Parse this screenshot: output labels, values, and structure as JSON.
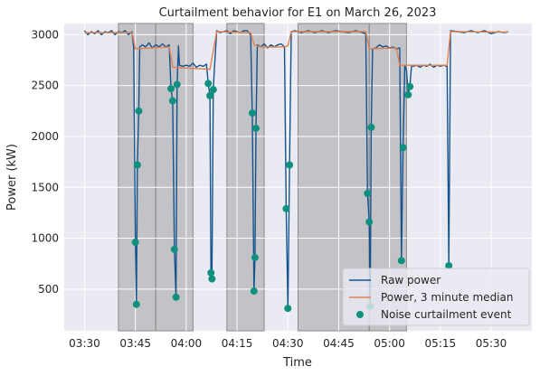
{
  "chart_data": {
    "type": "line",
    "title": "Curtailment behavior for E1 on March 26, 2023",
    "xlabel": "Time",
    "ylabel": "Power (kW)",
    "x_ticks": [
      "03:30",
      "03:45",
      "04:00",
      "04:15",
      "04:30",
      "04:45",
      "05:00",
      "05:15",
      "05:30"
    ],
    "y_ticks": [
      500,
      1000,
      1500,
      2000,
      2500,
      3000
    ],
    "xlim": [
      "03:24",
      "05:42"
    ],
    "ylim": [
      90,
      3110
    ],
    "grid": true,
    "legend_position": "lower-right",
    "shaded_periods": [
      [
        "03:40",
        "03:51"
      ],
      [
        "03:51",
        "04:02"
      ],
      [
        "04:12",
        "04:23"
      ],
      [
        "04:33",
        "04:54"
      ],
      [
        "04:54",
        "05:05"
      ]
    ],
    "series": [
      {
        "name": "Raw power",
        "color": "#16538c",
        "points": [
          [
            "03:30",
            3040
          ],
          [
            "03:31",
            3000
          ],
          [
            "03:32",
            3030
          ],
          [
            "03:33",
            3010
          ],
          [
            "03:34",
            3040
          ],
          [
            "03:35",
            3000
          ],
          [
            "03:36",
            3030
          ],
          [
            "03:37",
            3020
          ],
          [
            "03:38",
            3040
          ],
          [
            "03:39",
            3000
          ],
          [
            "03:40",
            3030
          ],
          [
            "03:41",
            3020
          ],
          [
            "03:42",
            3040
          ],
          [
            "03:43",
            3000
          ],
          [
            "03:44",
            3030
          ],
          [
            "03:44.5",
            2870
          ],
          [
            "03:45",
            960
          ],
          [
            "03:45.3",
            350
          ],
          [
            "03:45.6",
            1720
          ],
          [
            "03:46",
            2250
          ],
          [
            "03:46.3",
            2880
          ],
          [
            "03:47",
            2900
          ],
          [
            "03:48",
            2880
          ],
          [
            "03:49",
            2920
          ],
          [
            "03:50",
            2870
          ],
          [
            "03:51",
            2900
          ],
          [
            "03:52",
            2880
          ],
          [
            "03:53",
            2910
          ],
          [
            "03:54",
            2880
          ],
          [
            "03:55",
            2900
          ],
          [
            "03:55.5",
            2470
          ],
          [
            "03:56",
            2350
          ],
          [
            "03:56.5",
            890
          ],
          [
            "03:57",
            420
          ],
          [
            "03:57.3",
            2510
          ],
          [
            "03:57.7",
            2890
          ],
          [
            "03:58",
            2700
          ],
          [
            "03:59",
            2690
          ],
          [
            "04:00",
            2700
          ],
          [
            "04:01",
            2690
          ],
          [
            "04:02",
            2720
          ],
          [
            "04:03",
            2680
          ],
          [
            "04:04",
            2700
          ],
          [
            "04:05",
            2690
          ],
          [
            "04:06",
            2710
          ],
          [
            "04:06.5",
            2520
          ],
          [
            "04:07",
            2400
          ],
          [
            "04:07.3",
            660
          ],
          [
            "04:07.6",
            600
          ],
          [
            "04:08",
            2460
          ],
          [
            "04:08.3",
            2660
          ],
          [
            "04:09",
            3040
          ],
          [
            "04:10",
            3020
          ],
          [
            "04:11",
            3030
          ],
          [
            "04:12",
            3040
          ],
          [
            "04:13",
            3010
          ],
          [
            "04:14",
            3040
          ],
          [
            "04:15",
            3030
          ],
          [
            "04:16",
            3020
          ],
          [
            "04:17",
            3040
          ],
          [
            "04:18",
            3040
          ],
          [
            "04:19",
            3000
          ],
          [
            "04:19.5",
            2230
          ],
          [
            "04:20",
            480
          ],
          [
            "04:20.3",
            810
          ],
          [
            "04:20.6",
            2080
          ],
          [
            "04:21",
            2900
          ],
          [
            "04:22",
            2880
          ],
          [
            "04:23",
            2910
          ],
          [
            "04:24",
            2870
          ],
          [
            "04:25",
            2900
          ],
          [
            "04:26",
            2880
          ],
          [
            "04:27",
            2900
          ],
          [
            "04:28",
            2910
          ],
          [
            "04:29",
            2880
          ],
          [
            "04:29.5",
            1290
          ],
          [
            "04:30",
            310
          ],
          [
            "04:30.5",
            1720
          ],
          [
            "04:31",
            3030
          ],
          [
            "04:32",
            3040
          ],
          [
            "04:34",
            3020
          ],
          [
            "04:36",
            3040
          ],
          [
            "04:38",
            3020
          ],
          [
            "04:40",
            3040
          ],
          [
            "04:42",
            3020
          ],
          [
            "04:44",
            3040
          ],
          [
            "04:46",
            3030
          ],
          [
            "04:48",
            3020
          ],
          [
            "04:50",
            3040
          ],
          [
            "04:52",
            3020
          ],
          [
            "04:53",
            3010
          ],
          [
            "04:53.5",
            1440
          ],
          [
            "04:54",
            1160
          ],
          [
            "04:54.3",
            330
          ],
          [
            "04:54.6",
            2090
          ],
          [
            "04:55",
            2860
          ],
          [
            "04:56",
            2870
          ],
          [
            "04:57",
            2900
          ],
          [
            "04:58",
            2880
          ],
          [
            "04:59",
            2890
          ],
          [
            "05:00",
            2870
          ],
          [
            "05:01",
            2880
          ],
          [
            "05:02",
            2860
          ],
          [
            "05:03",
            2870
          ],
          [
            "05:03.5",
            780
          ],
          [
            "05:04",
            1890
          ],
          [
            "05:04.5",
            2700
          ],
          [
            "05:05",
            2650
          ],
          [
            "05:05.5",
            2410
          ],
          [
            "05:06",
            2490
          ],
          [
            "05:06.5",
            2700
          ],
          [
            "05:07",
            2690
          ],
          [
            "05:08",
            2700
          ],
          [
            "05:09",
            2680
          ],
          [
            "05:10",
            2700
          ],
          [
            "05:11",
            2690
          ],
          [
            "05:12",
            2710
          ],
          [
            "05:13",
            2680
          ],
          [
            "05:14",
            2700
          ],
          [
            "05:15",
            2690
          ],
          [
            "05:16",
            2700
          ],
          [
            "05:17",
            2690
          ],
          [
            "05:17.5",
            730
          ],
          [
            "05:18",
            3040
          ],
          [
            "05:20",
            3030
          ],
          [
            "05:22",
            3020
          ],
          [
            "05:24",
            3040
          ],
          [
            "05:26",
            3020
          ],
          [
            "05:28",
            3040
          ],
          [
            "05:30",
            3010
          ],
          [
            "05:32",
            3030
          ],
          [
            "05:34",
            3020
          ],
          [
            "05:35",
            3030
          ]
        ]
      },
      {
        "name": "Power, 3 minute median",
        "color": "#e0804f",
        "points": [
          [
            "03:30",
            3020
          ],
          [
            "03:44",
            3020
          ],
          [
            "03:45",
            2860
          ],
          [
            "03:55",
            2880
          ],
          [
            "03:56",
            2680
          ],
          [
            "04:07",
            2660
          ],
          [
            "04:09",
            3030
          ],
          [
            "04:19",
            3020
          ],
          [
            "04:20",
            2900
          ],
          [
            "04:22",
            2880
          ],
          [
            "04:29",
            2880
          ],
          [
            "04:30",
            2890
          ],
          [
            "04:31",
            3030
          ],
          [
            "04:53",
            3030
          ],
          [
            "04:54",
            2860
          ],
          [
            "05:02",
            2870
          ],
          [
            "05:03",
            2700
          ],
          [
            "05:17",
            2700
          ],
          [
            "05:18",
            3030
          ],
          [
            "05:35",
            3025
          ]
        ]
      },
      {
        "name": "Noise curtailment event",
        "color": "#10907e",
        "points": [
          [
            "03:45",
            960
          ],
          [
            "03:45.3",
            350
          ],
          [
            "03:45.6",
            1720
          ],
          [
            "03:46",
            2250
          ],
          [
            "03:55.5",
            2470
          ],
          [
            "03:56",
            2350
          ],
          [
            "03:56.5",
            890
          ],
          [
            "03:57",
            420
          ],
          [
            "03:57.3",
            2510
          ],
          [
            "04:06.5",
            2520
          ],
          [
            "04:07",
            2400
          ],
          [
            "04:07.3",
            660
          ],
          [
            "04:07.6",
            600
          ],
          [
            "04:08",
            2460
          ],
          [
            "04:19.5",
            2230
          ],
          [
            "04:20",
            480
          ],
          [
            "04:20.3",
            810
          ],
          [
            "04:20.6",
            2080
          ],
          [
            "04:29.5",
            1290
          ],
          [
            "04:30",
            310
          ],
          [
            "04:30.5",
            1720
          ],
          [
            "04:53.5",
            1440
          ],
          [
            "04:54",
            1160
          ],
          [
            "04:54.3",
            330
          ],
          [
            "04:54.6",
            2090
          ],
          [
            "05:03.5",
            780
          ],
          [
            "05:04",
            1890
          ],
          [
            "05:05.5",
            2410
          ],
          [
            "05:06",
            2490
          ],
          [
            "05:17.5",
            730
          ]
        ]
      }
    ]
  }
}
